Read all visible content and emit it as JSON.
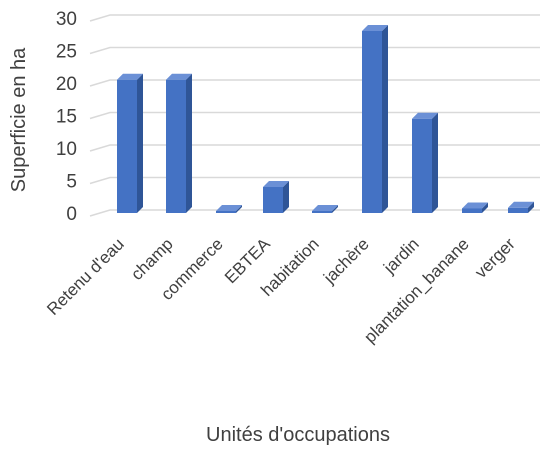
{
  "chart_data": {
    "type": "bar",
    "title": "",
    "xlabel": "Unités d'occupations",
    "ylabel": "Superficie en ha",
    "categories": [
      "Retenu d'eau",
      "champ",
      "commerce",
      "EBTEA",
      "habitation",
      "jachère",
      "jardin",
      "plantation_banane",
      "verger"
    ],
    "values": [
      20.5,
      20.5,
      0.2,
      4.0,
      0.3,
      28.0,
      14.5,
      0.7,
      0.8
    ],
    "ylim": [
      0,
      30
    ],
    "yticks": [
      0,
      5,
      10,
      15,
      20,
      25,
      30
    ],
    "grid": true,
    "legend": "none",
    "colors": {
      "bar_front": "#4472c4",
      "bar_side": "#2f5597",
      "bar_top": "#6b90d6",
      "grid": "#d9d9d9",
      "text": "#404040"
    }
  }
}
